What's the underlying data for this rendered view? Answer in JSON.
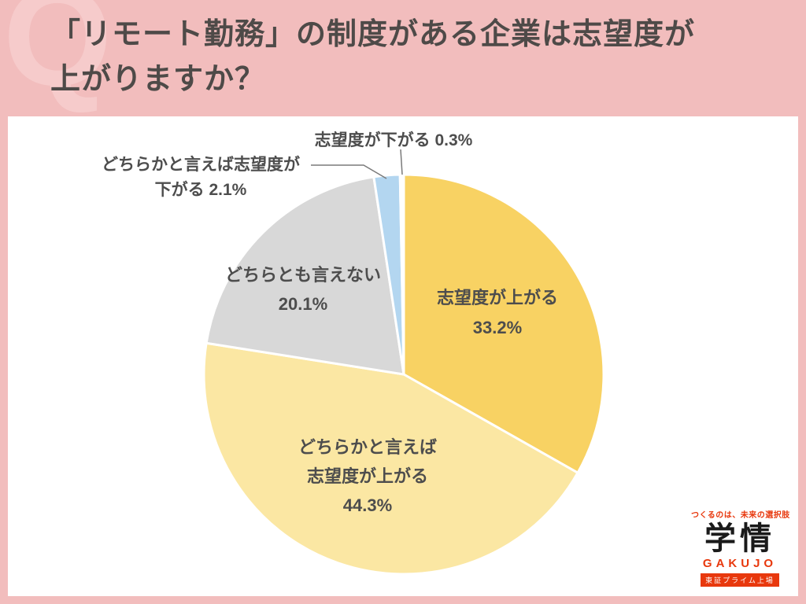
{
  "header": {
    "q": "Q",
    "title_line1": "「リモート勤務」の制度がある企業は志望度が",
    "title_line2": "上がりますか？"
  },
  "chart_data": {
    "type": "pie",
    "title": "「リモート勤務」の制度がある企業は志望度が上がりますか？",
    "direction": "clockwise",
    "start_angle_deg": 0,
    "slices": [
      {
        "label": "志望度が上がる",
        "value": 33.2,
        "color": "#F8D263"
      },
      {
        "label": "どちらかと言えば志望度が上がる",
        "value": 44.3,
        "color": "#FBE7A3"
      },
      {
        "label": "どちらとも言えない",
        "value": 20.1,
        "color": "#D8D8D8"
      },
      {
        "label": "どちらかと言えば志望度が下がる",
        "value": 2.1,
        "color": "#B3D6F0"
      },
      {
        "label": "志望度が下がる",
        "value": 0.3,
        "color": "#FFFFFF"
      }
    ]
  },
  "labels": {
    "down": {
      "text": "志望度が下がる 0.3%"
    },
    "somewhat_down": {
      "line1": "どちらかと言えば志望度が",
      "line2": "下がる 2.1%"
    },
    "neutral": {
      "line1": "どちらとも言えない",
      "line2": "20.1%"
    },
    "up": {
      "line1": "志望度が上がる",
      "line2": "33.2%"
    },
    "somewhat_up": {
      "line1": "どちらかと言えば",
      "line2": "志望度が上がる",
      "line3": "44.3%"
    }
  },
  "logo": {
    "tagline": "つくるのは、未来の選択肢",
    "name_jp": "学情",
    "name_en": "GAKUJO",
    "listing": "東証プライム上場"
  },
  "colors": {
    "page_bg": "#F2BDBD",
    "card_bg": "#FFFFFF",
    "title_text": "#4E4A48",
    "label_text": "#4D4D4D",
    "brand_red": "#E8380D"
  }
}
